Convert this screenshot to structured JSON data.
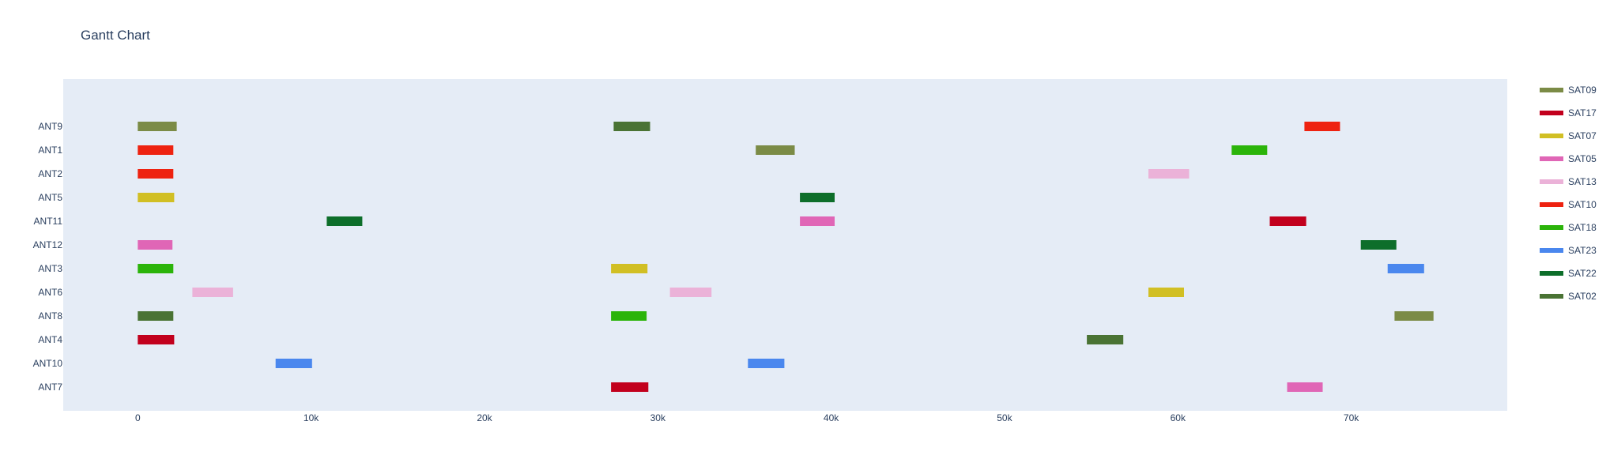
{
  "chart_data": {
    "type": "gantt",
    "title": "Gantt Chart",
    "xlabel": "",
    "ylabel": "",
    "xlim": [
      -4300,
      79000
    ],
    "x_ticks": [
      0,
      10000,
      20000,
      30000,
      40000,
      50000,
      60000,
      70000
    ],
    "x_tick_labels": [
      "0",
      "10k",
      "20k",
      "30k",
      "40k",
      "50k",
      "60k",
      "70k"
    ],
    "categories": [
      "ANT9",
      "ANT1",
      "ANT2",
      "ANT5",
      "ANT11",
      "ANT12",
      "ANT3",
      "ANT6",
      "ANT8",
      "ANT4",
      "ANT10",
      "ANT7"
    ],
    "plot_background": "#e5ecf6",
    "grid": false,
    "legend_position": "right",
    "series": [
      {
        "name": "SAT09",
        "color": "#7b8b46"
      },
      {
        "name": "SAT17",
        "color": "#c2001d"
      },
      {
        "name": "SAT07",
        "color": "#d1bf24"
      },
      {
        "name": "SAT05",
        "color": "#e066b6"
      },
      {
        "name": "SAT13",
        "color": "#ebb2d8"
      },
      {
        "name": "SAT10",
        "color": "#ee2210"
      },
      {
        "name": "SAT18",
        "color": "#2bb40a"
      },
      {
        "name": "SAT23",
        "color": "#4a87ee"
      },
      {
        "name": "SAT22",
        "color": "#0d6e2a"
      },
      {
        "name": "SAT02",
        "color": "#4a7334"
      }
    ],
    "tasks": [
      {
        "resource": "ANT9",
        "series": "SAT09",
        "start": 0,
        "end": 2250
      },
      {
        "resource": "ANT9",
        "series": "SAT02",
        "start": 27450,
        "end": 29550
      },
      {
        "resource": "ANT9",
        "series": "SAT10",
        "start": 67300,
        "end": 69350
      },
      {
        "resource": "ANT1",
        "series": "SAT10",
        "start": 0,
        "end": 2050
      },
      {
        "resource": "ANT1",
        "series": "SAT09",
        "start": 35650,
        "end": 37900
      },
      {
        "resource": "ANT1",
        "series": "SAT18",
        "start": 63100,
        "end": 65150
      },
      {
        "resource": "ANT2",
        "series": "SAT10",
        "start": 0,
        "end": 2050
      },
      {
        "resource": "ANT2",
        "series": "SAT13",
        "start": 58300,
        "end": 60650
      },
      {
        "resource": "ANT5",
        "series": "SAT07",
        "start": 0,
        "end": 2100
      },
      {
        "resource": "ANT5",
        "series": "SAT22",
        "start": 38200,
        "end": 40200
      },
      {
        "resource": "ANT11",
        "series": "SAT22",
        "start": 10900,
        "end": 12950
      },
      {
        "resource": "ANT11",
        "series": "SAT05",
        "start": 38200,
        "end": 40200
      },
      {
        "resource": "ANT11",
        "series": "SAT17",
        "start": 65300,
        "end": 67400
      },
      {
        "resource": "ANT12",
        "series": "SAT05",
        "start": 0,
        "end": 2000
      },
      {
        "resource": "ANT12",
        "series": "SAT22",
        "start": 70550,
        "end": 72600
      },
      {
        "resource": "ANT3",
        "series": "SAT18",
        "start": 0,
        "end": 2050
      },
      {
        "resource": "ANT3",
        "series": "SAT07",
        "start": 27300,
        "end": 29400
      },
      {
        "resource": "ANT3",
        "series": "SAT23",
        "start": 72100,
        "end": 74200
      },
      {
        "resource": "ANT6",
        "series": "SAT13",
        "start": 3150,
        "end": 5500
      },
      {
        "resource": "ANT6",
        "series": "SAT13",
        "start": 30700,
        "end": 33100
      },
      {
        "resource": "ANT6",
        "series": "SAT07",
        "start": 58300,
        "end": 60350
      },
      {
        "resource": "ANT8",
        "series": "SAT02",
        "start": 0,
        "end": 2050
      },
      {
        "resource": "ANT8",
        "series": "SAT18",
        "start": 27300,
        "end": 29350
      },
      {
        "resource": "ANT8",
        "series": "SAT09",
        "start": 72500,
        "end": 74750
      },
      {
        "resource": "ANT4",
        "series": "SAT17",
        "start": 0,
        "end": 2100
      },
      {
        "resource": "ANT4",
        "series": "SAT02",
        "start": 54750,
        "end": 56850
      },
      {
        "resource": "ANT10",
        "series": "SAT23",
        "start": 7950,
        "end": 10050
      },
      {
        "resource": "ANT10",
        "series": "SAT23",
        "start": 35200,
        "end": 37300
      },
      {
        "resource": "ANT7",
        "series": "SAT17",
        "start": 27300,
        "end": 29450
      },
      {
        "resource": "ANT7",
        "series": "SAT05",
        "start": 66300,
        "end": 68350
      }
    ]
  }
}
